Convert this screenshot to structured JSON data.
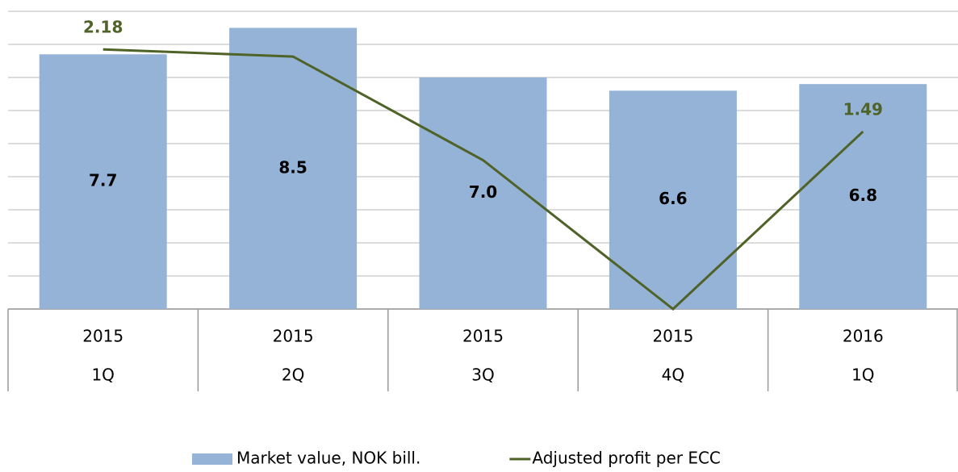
{
  "chart_data": {
    "type": "bar-line",
    "categories": [
      [
        "2015",
        "1Q"
      ],
      [
        "2015",
        "2Q"
      ],
      [
        "2015",
        "3Q"
      ],
      [
        "2015",
        "4Q"
      ],
      [
        "2016",
        "1Q"
      ]
    ],
    "series": [
      {
        "name": "Market value, NOK bill.",
        "type": "bar",
        "color": "#95b3d7",
        "values": [
          7.7,
          8.5,
          7.0,
          6.6,
          6.8
        ],
        "value_labels": [
          "7.7",
          "8.5",
          "7.0",
          "6.6",
          "6.8"
        ]
      },
      {
        "name": "Adjusted profit per ECC",
        "type": "line",
        "axis": "y2",
        "color": "#4f6228",
        "values": [
          2.18,
          2.12,
          1.25,
          0,
          1.49
        ],
        "value_labels": [
          "2.18",
          null,
          null,
          null,
          "1.49"
        ]
      }
    ],
    "ylim": [
      0,
      9
    ],
    "yticks": [
      0,
      1,
      2,
      3,
      4,
      5,
      6,
      7,
      8,
      9
    ],
    "y2lim": [
      0,
      2.5
    ],
    "grid": true,
    "legend": "bottom"
  }
}
